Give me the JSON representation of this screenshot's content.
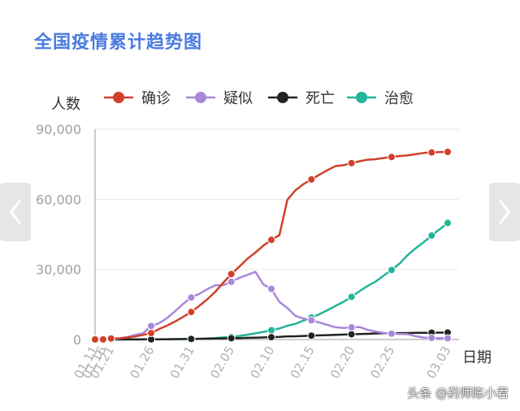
{
  "page": {
    "title": "全国疫情累计趋势图",
    "watermark": "头条 @药师陈小君"
  },
  "colors": {
    "title": "#4a7be0",
    "nav_bg": "#e6e6e6"
  },
  "icons": {
    "prev": "chevron-left-icon",
    "next": "chevron-right-icon"
  },
  "chart_data": {
    "type": "line",
    "title": "全国疫情累计趋势图",
    "ylabel": "人数",
    "xlabel": "日期",
    "ylim": [
      0,
      90000
    ],
    "yticks": [
      "0",
      "30,000",
      "60,000",
      "90,000"
    ],
    "ytick_values": [
      0,
      30000,
      60000,
      90000
    ],
    "grid": "horizontal",
    "legend_position": "top",
    "xticks": [
      "01.11",
      "01.16",
      "01.21",
      "01.26",
      "01.31",
      "02.05",
      "02.10",
      "02.15",
      "02.20",
      "02.25",
      "03.03"
    ],
    "x": [
      "01.11",
      "01.16",
      "01.21",
      "01.22",
      "01.23",
      "01.24",
      "01.25",
      "01.26",
      "01.27",
      "01.28",
      "01.29",
      "01.30",
      "01.31",
      "02.01",
      "02.02",
      "02.03",
      "02.04",
      "02.05",
      "02.06",
      "02.07",
      "02.08",
      "02.09",
      "02.10",
      "02.11",
      "02.12",
      "02.13",
      "02.14",
      "02.15",
      "02.16",
      "02.17",
      "02.18",
      "02.19",
      "02.20",
      "02.21",
      "02.22",
      "02.23",
      "02.24",
      "02.25",
      "02.26",
      "02.27",
      "02.28",
      "02.29",
      "03.01",
      "03.02",
      "03.03"
    ],
    "series": [
      {
        "name": "确诊",
        "color": "#d1402a",
        "values": [
          41,
          45,
          440,
          571,
          830,
          1287,
          1975,
          2744,
          4515,
          5974,
          7711,
          9692,
          11791,
          14380,
          17205,
          20438,
          24324,
          28018,
          31161,
          34546,
          37198,
          40171,
          42638,
          44653,
          59804,
          63851,
          66492,
          68500,
          70548,
          72436,
          74185,
          74576,
          75465,
          76288,
          76936,
          77150,
          77658,
          78064,
          78497,
          78824,
          79251,
          79824,
          80026,
          80151,
          80270
        ],
        "markers": [
          0,
          1,
          2,
          7,
          12,
          17,
          22,
          27,
          32,
          37,
          42,
          44
        ]
      },
      {
        "name": "疑似",
        "color": "#a987db",
        "values": [
          0,
          0,
          37,
          393,
          1072,
          1965,
          2684,
          5794,
          6973,
          9239,
          12167,
          15238,
          17988,
          19544,
          21558,
          23214,
          23260,
          24702,
          26359,
          27657,
          28942,
          23589,
          21675,
          16067,
          13435,
          10109,
          8969,
          8228,
          7264,
          6242,
          5248,
          4922,
          5206,
          5365,
          4148,
          3434,
          2824,
          2491,
          2358,
          2308,
          1418,
          851,
          715,
          587,
          520
        ],
        "markers": [
          0,
          1,
          2,
          7,
          12,
          17,
          22,
          27,
          32,
          37,
          42,
          44
        ]
      },
      {
        "name": "死亡",
        "color": "#222222",
        "values": [
          1,
          1,
          9,
          17,
          25,
          41,
          56,
          80,
          106,
          132,
          170,
          213,
          259,
          304,
          361,
          425,
          490,
          563,
          636,
          722,
          811,
          908,
          1016,
          1113,
          1367,
          1380,
          1523,
          1665,
          1770,
          1868,
          2004,
          2118,
          2236,
          2345,
          2442,
          2592,
          2663,
          2715,
          2744,
          2788,
          2835,
          2870,
          2912,
          2943,
          2981
        ],
        "markers": [
          0,
          1,
          2,
          7,
          12,
          17,
          22,
          27,
          32,
          37,
          42,
          44
        ]
      },
      {
        "name": "治愈",
        "color": "#23b49a",
        "values": [
          0,
          0,
          25,
          28,
          34,
          38,
          49,
          51,
          60,
          103,
          124,
          171,
          243,
          328,
          475,
          632,
          892,
          1153,
          1540,
          2050,
          2649,
          3281,
          3996,
          4740,
          5911,
          6723,
          8096,
          9419,
          10844,
          12552,
          14376,
          16155,
          18264,
          20659,
          22888,
          24734,
          27323,
          29745,
          32495,
          36117,
          39002,
          41625,
          44462,
          47204,
          49856
        ],
        "markers": [
          0,
          1,
          2,
          7,
          12,
          17,
          22,
          27,
          32,
          37,
          42,
          44
        ]
      }
    ]
  }
}
